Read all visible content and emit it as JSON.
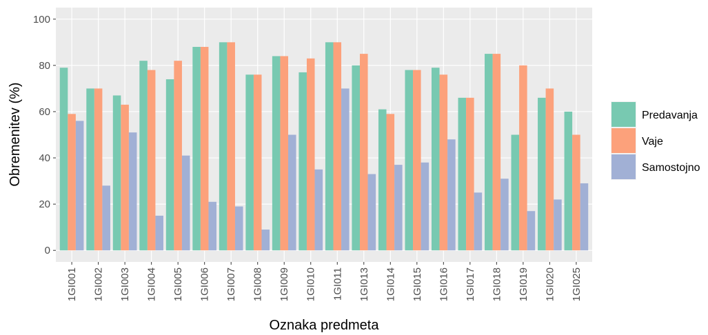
{
  "chart_data": {
    "type": "bar",
    "x_label": "Oznaka predmeta",
    "y_label": "Obremenitev (%)",
    "categories": [
      "1GI001",
      "1GI002",
      "1GI003",
      "1GI004",
      "1GI005",
      "1GI006",
      "1GI007",
      "1GI008",
      "1GI009",
      "1GI010",
      "1GI011",
      "1GI013",
      "1GI014",
      "1GI015",
      "1GI016",
      "1GI017",
      "1GI018",
      "1GI019",
      "1GI020",
      "1GI025"
    ],
    "series": [
      {
        "name": "Predavanja",
        "color": "#78c9b1",
        "values": [
          79,
          70,
          67,
          82,
          74,
          88,
          90,
          76,
          84,
          77,
          90,
          80,
          61,
          78,
          79,
          66,
          85,
          50,
          66,
          60
        ]
      },
      {
        "name": "Vaje",
        "color": "#fca17b",
        "values": [
          59,
          70,
          63,
          78,
          82,
          88,
          90,
          76,
          84,
          83,
          90,
          85,
          59,
          78,
          76,
          66,
          85,
          80,
          70,
          50
        ]
      },
      {
        "name": "Samostojno",
        "color": "#a1b0d5",
        "values": [
          56,
          28,
          51,
          15,
          41,
          21,
          19,
          9,
          50,
          35,
          70,
          33,
          37,
          38,
          48,
          25,
          31,
          17,
          22,
          29
        ]
      }
    ],
    "ylim": [
      -5,
      105
    ],
    "yticks": [
      0,
      20,
      40,
      60,
      80,
      100
    ],
    "grid": true,
    "legend": "right"
  }
}
